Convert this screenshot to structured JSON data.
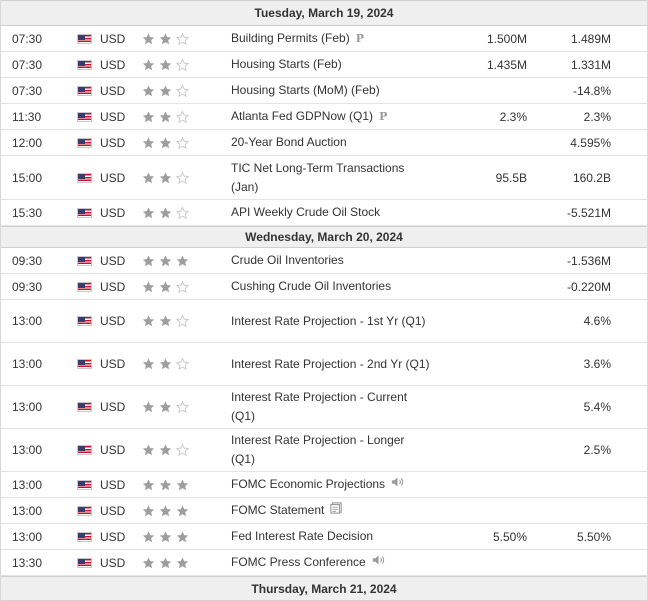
{
  "days": [
    {
      "label": "Tuesday, March 19, 2024",
      "events": [
        {
          "time": "07:30",
          "currency": "USD",
          "importance": 2,
          "event": "Building Permits (Feb)",
          "icon": "preliminary-icon",
          "actual": "1.500M",
          "previous": "1.489M"
        },
        {
          "time": "07:30",
          "currency": "USD",
          "importance": 2,
          "event": "Housing Starts (Feb)",
          "icon": "",
          "actual": "1.435M",
          "previous": "1.331M"
        },
        {
          "time": "07:30",
          "currency": "USD",
          "importance": 2,
          "event": "Housing Starts (MoM) (Feb)",
          "icon": "",
          "actual": "",
          "previous": "-14.8%"
        },
        {
          "time": "11:30",
          "currency": "USD",
          "importance": 2,
          "event": "Atlanta Fed GDPNow (Q1)",
          "icon": "preliminary-icon",
          "actual": "2.3%",
          "previous": "2.3%"
        },
        {
          "time": "12:00",
          "currency": "USD",
          "importance": 2,
          "event": "20-Year Bond Auction",
          "icon": "",
          "actual": "",
          "previous": "4.595%"
        },
        {
          "time": "15:00",
          "currency": "USD",
          "importance": 2,
          "event": "TIC Net Long-Term Transactions (Jan)",
          "icon": "",
          "actual": "95.5B",
          "previous": "160.2B"
        },
        {
          "time": "15:30",
          "currency": "USD",
          "importance": 2,
          "event": "API Weekly Crude Oil Stock",
          "icon": "",
          "actual": "",
          "previous": "-5.521M"
        }
      ]
    },
    {
      "label": "Wednesday, March 20, 2024",
      "events": [
        {
          "time": "09:30",
          "currency": "USD",
          "importance": 3,
          "event": "Crude Oil Inventories",
          "icon": "",
          "actual": "",
          "previous": "-1.536M"
        },
        {
          "time": "09:30",
          "currency": "USD",
          "importance": 2,
          "event": "Cushing Crude Oil Inventories",
          "icon": "",
          "actual": "",
          "previous": "-0.220M"
        },
        {
          "time": "13:00",
          "currency": "USD",
          "importance": 2,
          "event": "Interest Rate Projection - 1st Yr (Q1)",
          "icon": "",
          "actual": "",
          "previous": "4.6%"
        },
        {
          "time": "13:00",
          "currency": "USD",
          "importance": 2,
          "event": "Interest Rate Projection - 2nd Yr (Q1)",
          "icon": "",
          "actual": "",
          "previous": "3.6%"
        },
        {
          "time": "13:00",
          "currency": "USD",
          "importance": 2,
          "event": "Interest Rate Projection - Current (Q1)",
          "icon": "",
          "actual": "",
          "previous": "5.4%"
        },
        {
          "time": "13:00",
          "currency": "USD",
          "importance": 2,
          "event": "Interest Rate Projection - Longer (Q1)",
          "icon": "",
          "actual": "",
          "previous": "2.5%"
        },
        {
          "time": "13:00",
          "currency": "USD",
          "importance": 3,
          "event": "FOMC Economic Projections",
          "icon": "speaker-icon",
          "actual": "",
          "previous": ""
        },
        {
          "time": "13:00",
          "currency": "USD",
          "importance": 3,
          "event": "FOMC Statement",
          "icon": "document-icon",
          "actual": "",
          "previous": ""
        },
        {
          "time": "13:00",
          "currency": "USD",
          "importance": 3,
          "event": "Fed Interest Rate Decision",
          "icon": "",
          "actual": "5.50%",
          "previous": "5.50%"
        },
        {
          "time": "13:30",
          "currency": "USD",
          "importance": 3,
          "event": "FOMC Press Conference",
          "icon": "speaker-icon",
          "actual": "",
          "previous": ""
        }
      ]
    },
    {
      "label": "Thursday, March 21, 2024",
      "events": []
    }
  ],
  "icon_labels": {
    "preliminary-icon": "P"
  },
  "colors": {
    "star_filled": "#9e9e9e",
    "star_empty": "#c9c9c9",
    "day_header_bg": "#efefef"
  }
}
